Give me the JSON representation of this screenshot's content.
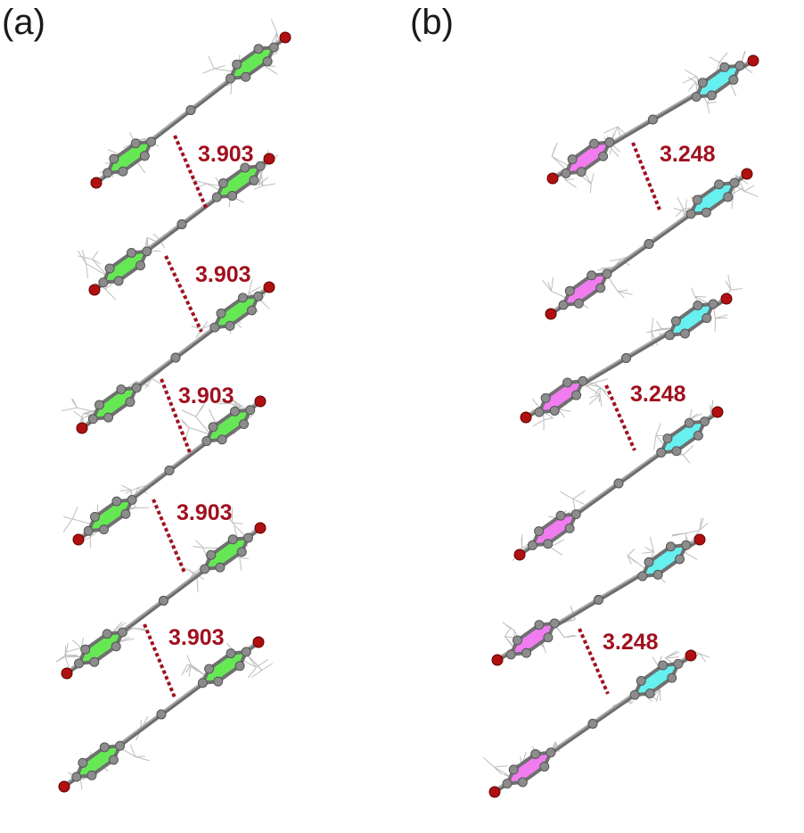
{
  "panels": [
    {
      "label": "(a)",
      "ring_color": "#66e855",
      "contacts": [
        "3.903",
        "3.903",
        "3.903",
        "3.903",
        "3.903"
      ]
    },
    {
      "label": "(b)",
      "ring_colors": [
        "#66f0f0",
        "#f07cf0"
      ],
      "contacts": [
        "3.248",
        "3.248",
        "3.248"
      ]
    }
  ],
  "colors": {
    "contact_line": "#a0101e",
    "carbon": "#8c8c8c",
    "oxygen": "#b01010",
    "hydrogen_bonds": "#bdbdbd"
  }
}
